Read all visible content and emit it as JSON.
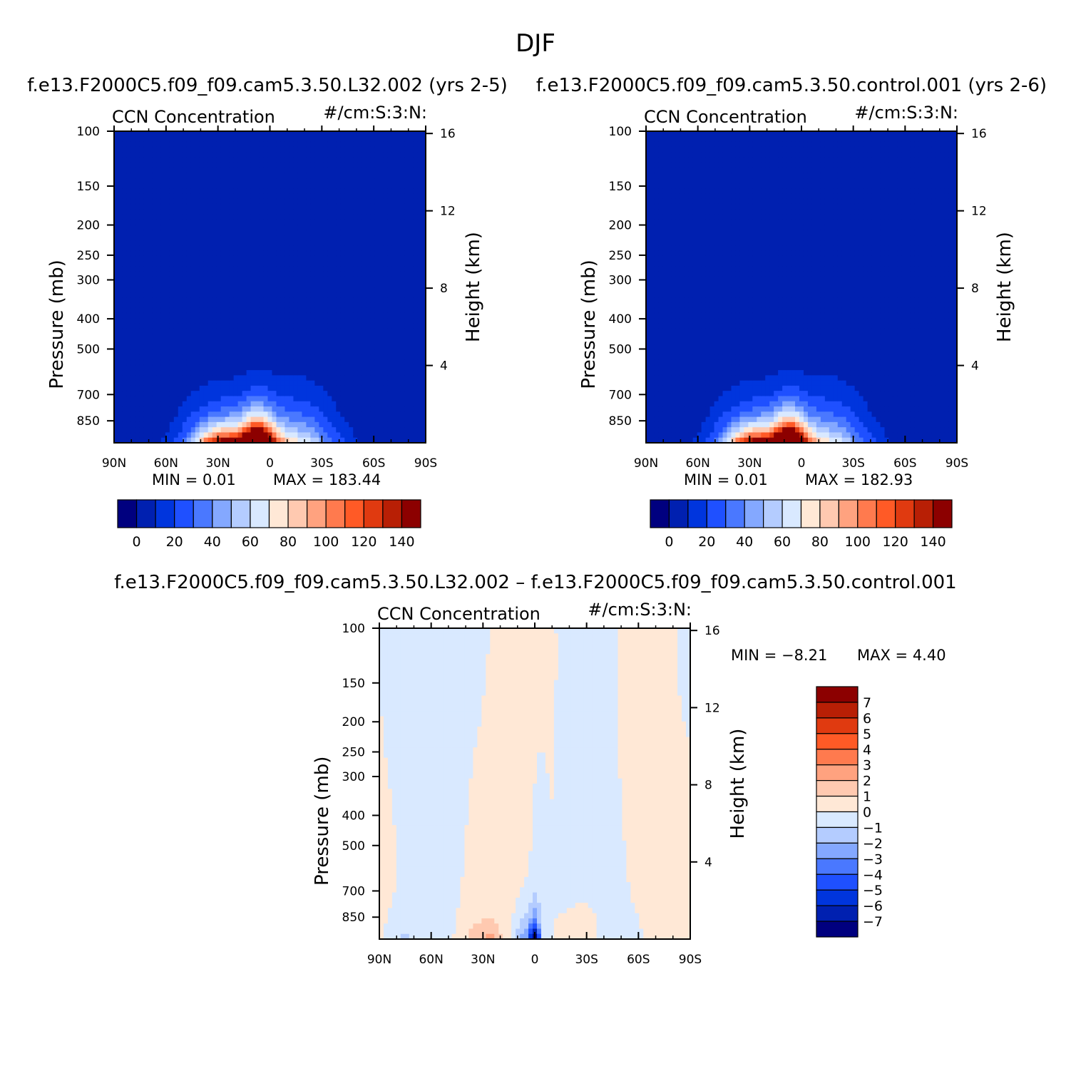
{
  "page_title": "DJF",
  "colors": {
    "seq_palette": [
      "#00007f",
      "#0020b0",
      "#0035dd",
      "#1f50ff",
      "#4a78ff",
      "#84a8ff",
      "#b4ccff",
      "#d9e9ff",
      "#ffe8d6",
      "#ffc9b0",
      "#ffa27f",
      "#ff7a4e",
      "#ff5a26",
      "#e03a10",
      "#b81f05",
      "#8c0000"
    ],
    "diff_palette": [
      "#00007f",
      "#0020b0",
      "#0035dd",
      "#1f50ff",
      "#4a78ff",
      "#84a8ff",
      "#b4ccff",
      "#d9e9ff",
      "#ffe8d6",
      "#ffc9b0",
      "#ffa27f",
      "#ff7a4e",
      "#ff5a26",
      "#e03a10",
      "#b81f05",
      "#8c0000"
    ],
    "background_blue": "#0024b8"
  },
  "chart_data": [
    {
      "type": "heatmap",
      "panel_title": "f.e13.F2000C5.f09_f09.cam5.3.50.L32.002 (yrs 2-5)",
      "left_label": "CCN Concentration",
      "right_label": "#/cm:S:3:N:",
      "xlabel": "",
      "ylabel": "Pressure (mb)",
      "y2label": "Height (km)",
      "x_ticks": [
        "90N",
        "60N",
        "30N",
        "0",
        "30S",
        "60S",
        "90S"
      ],
      "y_ticks": [
        "100",
        "150",
        "200",
        "250",
        "300",
        "400",
        "500",
        "700",
        "850"
      ],
      "y2_ticks": [
        "16",
        "12",
        "8",
        "4"
      ],
      "min_text": "MIN =    0.01",
      "max_text": "MAX =  183.44",
      "colorbar_labels": [
        "0",
        "20",
        "40",
        "60",
        "80",
        "100",
        "120",
        "140"
      ],
      "colorbar_levels": [
        0,
        10,
        20,
        30,
        40,
        50,
        60,
        70,
        80,
        90,
        100,
        110,
        120,
        130,
        140
      ],
      "peak": {
        "lat": -7,
        "pressure": 890,
        "value": 183.44
      }
    },
    {
      "type": "heatmap",
      "panel_title": "f.e13.F2000C5.f09_f09.cam5.3.50.control.001 (yrs 2-6)",
      "left_label": "CCN Concentration",
      "right_label": "#/cm:S:3:N:",
      "xlabel": "",
      "ylabel": "Pressure (mb)",
      "y2label": "Height (km)",
      "x_ticks": [
        "90N",
        "60N",
        "30N",
        "0",
        "30S",
        "60S",
        "90S"
      ],
      "y_ticks": [
        "100",
        "150",
        "200",
        "250",
        "300",
        "400",
        "500",
        "700",
        "850"
      ],
      "y2_ticks": [
        "16",
        "12",
        "8",
        "4"
      ],
      "min_text": "MIN =    0.01",
      "max_text": "MAX =  182.93",
      "colorbar_labels": [
        "0",
        "20",
        "40",
        "60",
        "80",
        "100",
        "120",
        "140"
      ],
      "colorbar_levels": [
        0,
        10,
        20,
        30,
        40,
        50,
        60,
        70,
        80,
        90,
        100,
        110,
        120,
        130,
        140
      ],
      "peak": {
        "lat": -7,
        "pressure": 890,
        "value": 182.93
      }
    },
    {
      "type": "heatmap",
      "panel_title": "f.e13.F2000C5.f09_f09.cam5.3.50.L32.002 – f.e13.F2000C5.f09_f09.cam5.3.50.control.001",
      "left_label": "CCN Concentration",
      "right_label": "#/cm:S:3:N:",
      "xlabel": "",
      "ylabel": "Pressure (mb)",
      "y2label": "Height (km)",
      "x_ticks": [
        "90N",
        "60N",
        "30N",
        "0",
        "30S",
        "60S",
        "90S"
      ],
      "y_ticks": [
        "100",
        "150",
        "200",
        "250",
        "300",
        "400",
        "500",
        "700",
        "850"
      ],
      "y2_ticks": [
        "16",
        "12",
        "8",
        "4"
      ],
      "min_text": "MIN =   −8.21",
      "max_text": "MAX =    4.40",
      "colorbar_labels": [
        "7",
        "6",
        "5",
        "4",
        "3",
        "2",
        "1",
        "0",
        "−1",
        "−2",
        "−3",
        "−4",
        "−5",
        "−6",
        "−7"
      ],
      "colorbar_levels": [
        -7,
        -6,
        -5,
        -4,
        -3,
        -2,
        -1,
        0,
        1,
        2,
        3,
        4,
        5,
        6,
        7
      ]
    }
  ]
}
